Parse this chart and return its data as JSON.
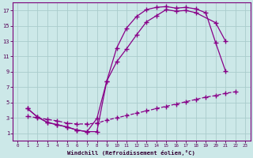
{
  "xlabel": "Windchill (Refroidissement éolien,°C)",
  "bg_color": "#cce8e8",
  "grid_color": "#aacccc",
  "line_color": "#880088",
  "xlim": [
    -0.5,
    23.5
  ],
  "ylim": [
    0,
    18
  ],
  "xticks": [
    0,
    1,
    2,
    3,
    4,
    5,
    6,
    7,
    8,
    9,
    10,
    11,
    12,
    13,
    14,
    15,
    16,
    17,
    18,
    19,
    20,
    21,
    22,
    23
  ],
  "yticks": [
    1,
    3,
    5,
    7,
    9,
    11,
    13,
    15,
    17
  ],
  "line1_x": [
    1,
    2,
    3,
    4,
    5,
    6,
    7,
    8,
    9,
    10,
    11,
    12,
    13,
    14,
    15,
    16,
    17,
    18,
    20,
    21
  ],
  "line1_y": [
    4.2,
    3.1,
    2.4,
    2.1,
    1.8,
    1.4,
    1.2,
    1.2,
    7.8,
    10.3,
    12.0,
    13.8,
    15.5,
    16.3,
    17.1,
    16.9,
    17.0,
    16.7,
    15.4,
    13.0
  ],
  "line2_x": [
    1,
    2,
    3,
    4,
    5,
    6,
    7,
    8,
    9,
    10,
    11,
    12,
    13,
    14,
    15,
    16,
    17,
    18,
    19,
    20,
    21,
    22
  ],
  "line2_y": [
    4.2,
    3.1,
    2.4,
    2.1,
    1.8,
    1.4,
    1.2,
    2.9,
    7.8,
    12.1,
    14.7,
    16.2,
    17.1,
    17.4,
    17.5,
    17.3,
    17.4,
    17.2,
    16.7,
    12.8,
    9.1,
    null
  ],
  "line3_x": [
    1,
    2,
    3,
    4,
    5,
    6,
    7,
    8,
    9,
    10,
    11,
    12,
    13,
    14,
    15,
    16,
    17,
    18,
    19,
    20,
    21,
    22
  ],
  "line3_y": [
    3.2,
    3.0,
    2.8,
    2.6,
    2.3,
    2.2,
    2.2,
    2.3,
    2.7,
    3.0,
    3.3,
    3.6,
    3.9,
    4.2,
    4.5,
    4.8,
    5.1,
    5.4,
    5.7,
    5.9,
    6.2,
    6.4
  ]
}
